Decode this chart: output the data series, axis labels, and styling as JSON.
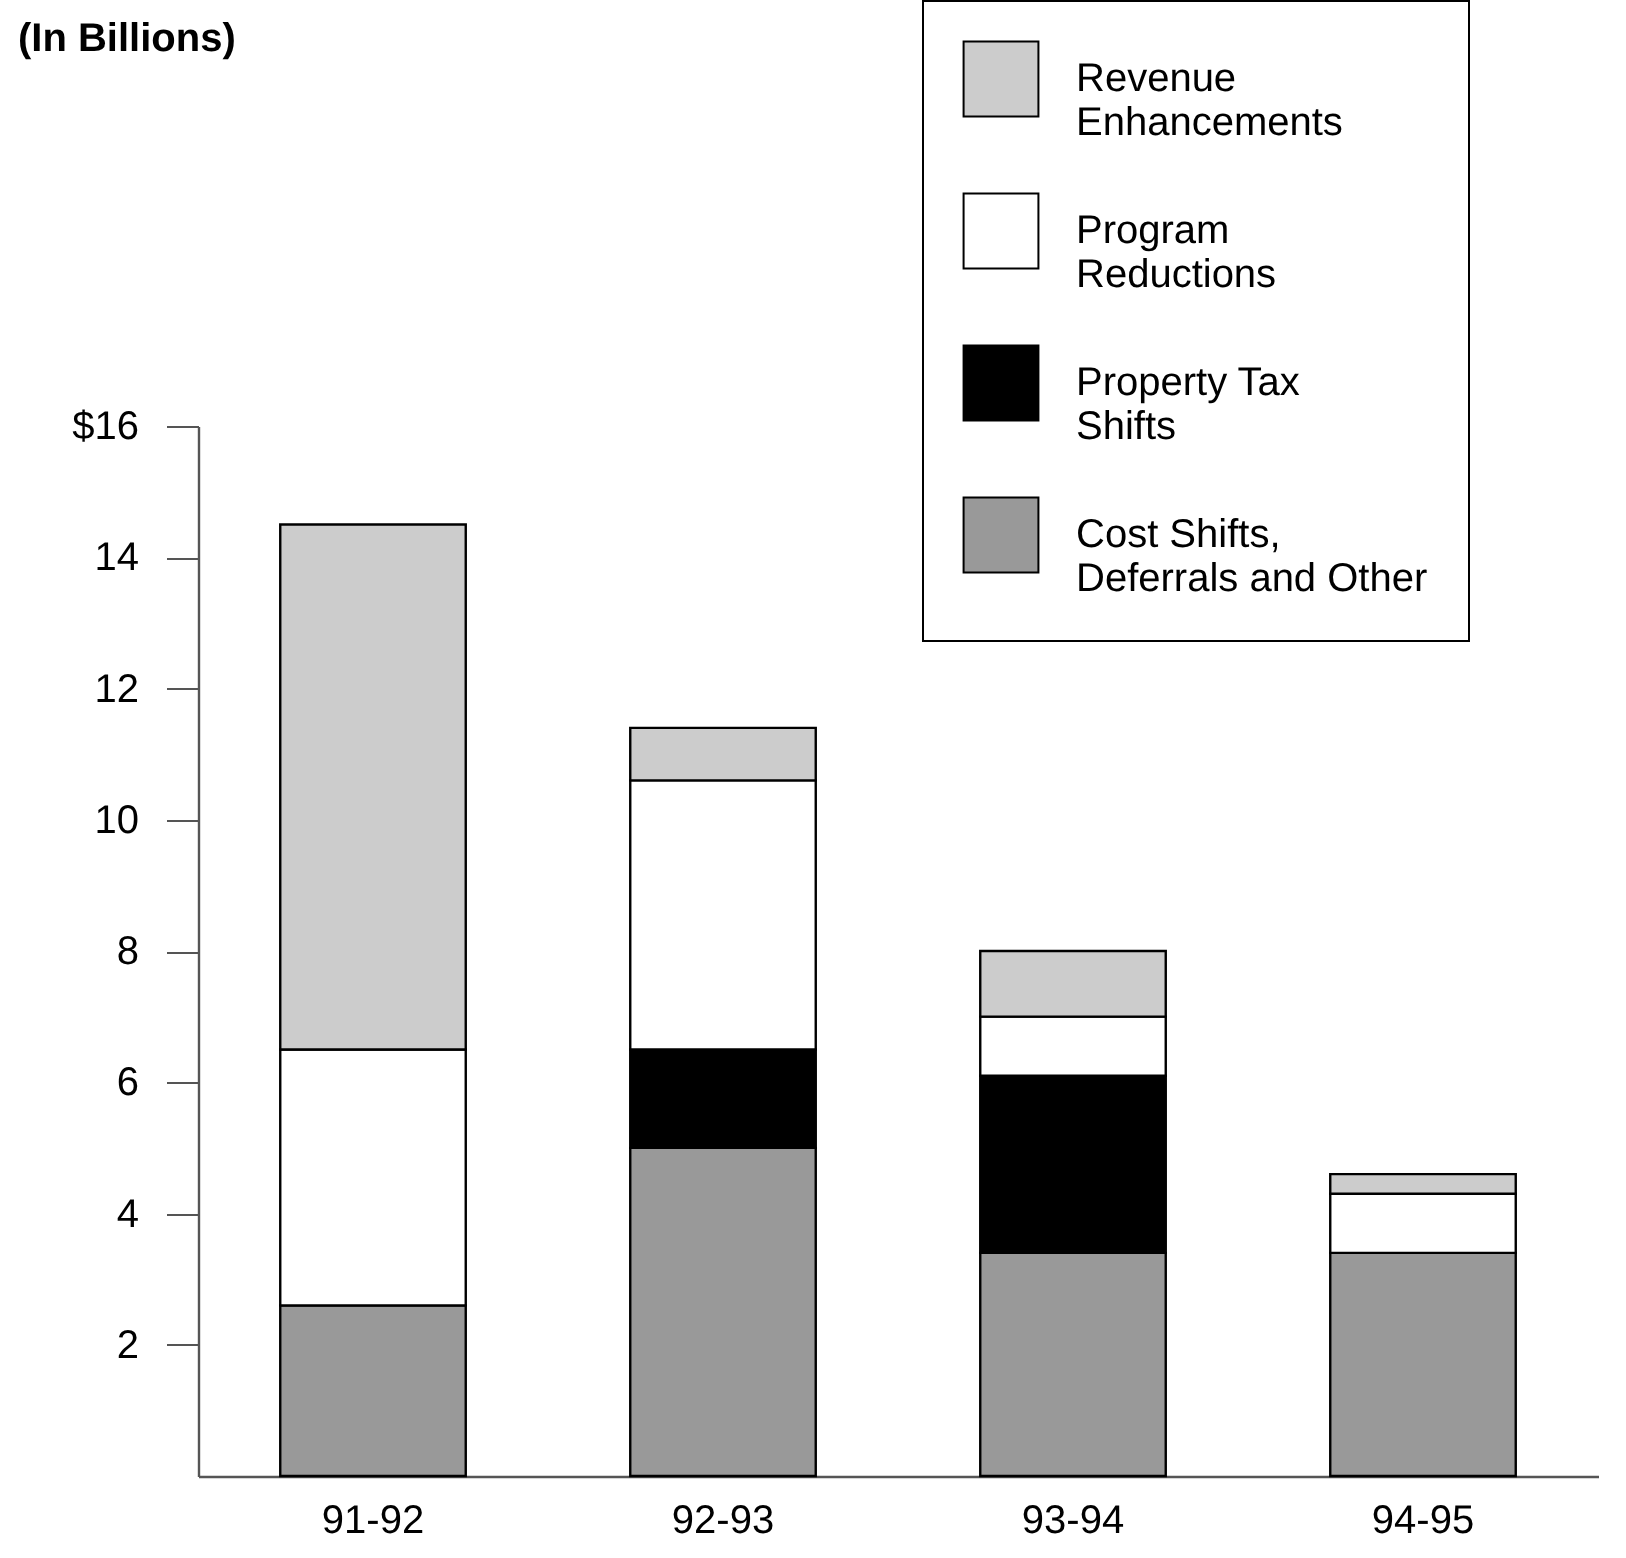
{
  "chart_data": {
    "type": "bar",
    "title": "(In Billions)",
    "stacked": true,
    "categories": [
      "91-92",
      "92-93",
      "93-94",
      "94-95"
    ],
    "series": [
      {
        "name": "Cost Shifts, Deferrals and Other",
        "color": "#999999",
        "values": [
          2.6,
          5.0,
          3.4,
          3.4
        ]
      },
      {
        "name": "Property Tax Shifts",
        "color": "#000000",
        "values": [
          0,
          1.5,
          2.7,
          0
        ]
      },
      {
        "name": "Program Reductions",
        "color": "#ffffff",
        "values": [
          3.9,
          4.1,
          0.9,
          0.9
        ]
      },
      {
        "name": "Revenue Enhancements",
        "color": "#cccccc",
        "values": [
          8.0,
          0.8,
          1.0,
          0.3
        ]
      }
    ],
    "ylim": [
      0,
      16
    ],
    "yticks": [
      2,
      4,
      6,
      8,
      10,
      12,
      14,
      {
        "value": 16,
        "label": "$16"
      }
    ],
    "grid": false,
    "legend": "top right"
  }
}
